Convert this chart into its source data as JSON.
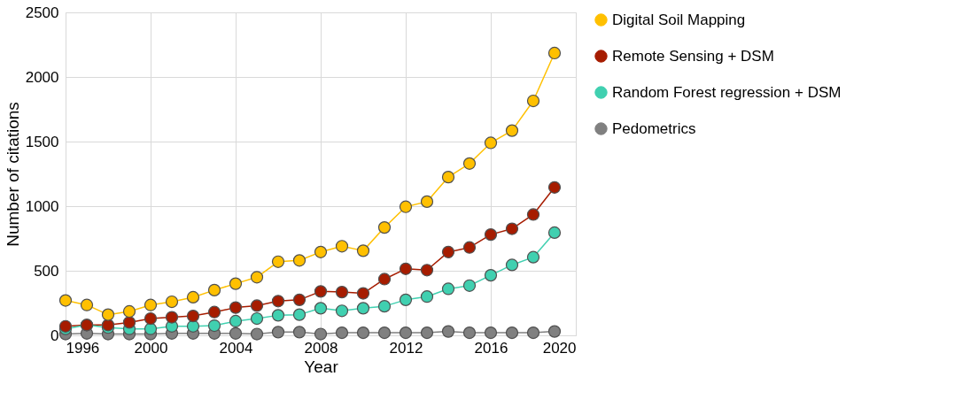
{
  "chart_data": {
    "type": "line",
    "xlabel": "Year",
    "ylabel": "Number of citations",
    "x": [
      1996,
      1997,
      1998,
      1999,
      2000,
      2001,
      2002,
      2003,
      2004,
      2005,
      2006,
      2007,
      2008,
      2009,
      2010,
      2011,
      2012,
      2013,
      2014,
      2015,
      2016,
      2017,
      2018,
      2019
    ],
    "series": [
      {
        "name": "Digital Soil Mapping",
        "color": "#ffc000",
        "values": [
          270,
          235,
          160,
          185,
          235,
          260,
          295,
          350,
          400,
          450,
          570,
          580,
          645,
          690,
          655,
          835,
          995,
          1035,
          1225,
          1330,
          1490,
          1585,
          1815,
          2185
        ]
      },
      {
        "name": "Remote Sensing + DSM",
        "color": "#a61c00",
        "values": [
          70,
          80,
          80,
          100,
          130,
          140,
          150,
          180,
          215,
          230,
          265,
          275,
          340,
          335,
          325,
          435,
          515,
          505,
          645,
          680,
          780,
          825,
          935,
          1145
        ]
      },
      {
        "name": "Random Forest regression + DSM",
        "color": "#40d0b0",
        "values": [
          50,
          80,
          60,
          50,
          50,
          70,
          70,
          75,
          110,
          130,
          155,
          160,
          210,
          190,
          210,
          225,
          275,
          300,
          360,
          385,
          465,
          545,
          605,
          795
        ]
      },
      {
        "name": "Pedometrics",
        "color": "#808080",
        "values": [
          10,
          15,
          10,
          10,
          10,
          15,
          15,
          15,
          15,
          10,
          25,
          25,
          10,
          20,
          20,
          20,
          20,
          20,
          30,
          20,
          20,
          20,
          20,
          30
        ]
      }
    ],
    "xlim": [
      1996,
      2020
    ],
    "xticks": [
      1996,
      2000,
      2004,
      2008,
      2012,
      2016,
      2020
    ],
    "ylim": [
      0,
      2500
    ],
    "yticks": [
      0,
      500,
      1000,
      1500,
      2000,
      2500
    ],
    "grid": true,
    "legend": "right",
    "marker": "circle",
    "line_style": "solid"
  }
}
